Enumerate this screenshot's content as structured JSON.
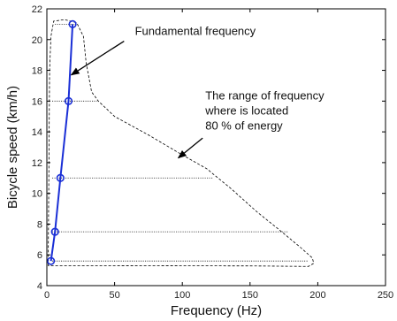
{
  "chart_data": {
    "type": "line",
    "xlabel": "Frequency (Hz)",
    "ylabel": "Bicycle speed (km/h)",
    "xlim": [
      0,
      250
    ],
    "ylim": [
      4,
      22
    ],
    "xticks": [
      0,
      50,
      100,
      150,
      200,
      250
    ],
    "yticks": [
      4,
      6,
      8,
      10,
      12,
      14,
      16,
      18,
      20,
      22
    ],
    "grid": false,
    "series": [
      {
        "name": "",
        "color": "#1a2fd6",
        "marker": "circle",
        "x": [
          3,
          6,
          10,
          16,
          19
        ],
        "y": [
          5.6,
          7.5,
          11,
          16,
          21
        ]
      }
    ],
    "energy_band": {
      "color": "#000000",
      "line_style": "dashed",
      "outline": [
        [
          1,
          5.3
        ],
        [
          2,
          18
        ],
        [
          3,
          20.2
        ],
        [
          5,
          21.2
        ],
        [
          13,
          21.3
        ],
        [
          22,
          21.1
        ],
        [
          27,
          20.2
        ],
        [
          29,
          18.5
        ],
        [
          33,
          16.6
        ],
        [
          38,
          16
        ],
        [
          50,
          15
        ],
        [
          75,
          13.8
        ],
        [
          100,
          12.5
        ],
        [
          118,
          11.6
        ],
        [
          136,
          10.3
        ],
        [
          155,
          8.8
        ],
        [
          172,
          7.6
        ],
        [
          187,
          6.5
        ],
        [
          196,
          5.8
        ],
        [
          197,
          5.45
        ],
        [
          193,
          5.25
        ],
        [
          150,
          5.28
        ],
        [
          100,
          5.29
        ],
        [
          50,
          5.3
        ],
        [
          10,
          5.3
        ],
        [
          1,
          5.3
        ]
      ],
      "horizontal_lines": [
        {
          "y": 21,
          "x_start": 6,
          "x_end": 22
        },
        {
          "y": 16,
          "x_start": 4,
          "x_end": 37
        },
        {
          "y": 11,
          "x_start": 4,
          "x_end": 123
        },
        {
          "y": 7.5,
          "x_start": 4,
          "x_end": 178
        },
        {
          "y": 5.6,
          "x_start": 4,
          "x_end": 193
        }
      ]
    },
    "annotations": [
      {
        "text": "Fundamental frequency",
        "x": 65,
        "y": 20.3,
        "arrow_from": [
          57,
          19.9
        ],
        "arrow_to": [
          18,
          17.7
        ]
      },
      {
        "lines": [
          "The range of frequency",
          "where is located",
          "80 % of energy"
        ],
        "x": 117,
        "y": 16.1,
        "arrow_from": [
          115,
          13.6
        ],
        "arrow_to": [
          97,
          12.3
        ]
      }
    ]
  }
}
